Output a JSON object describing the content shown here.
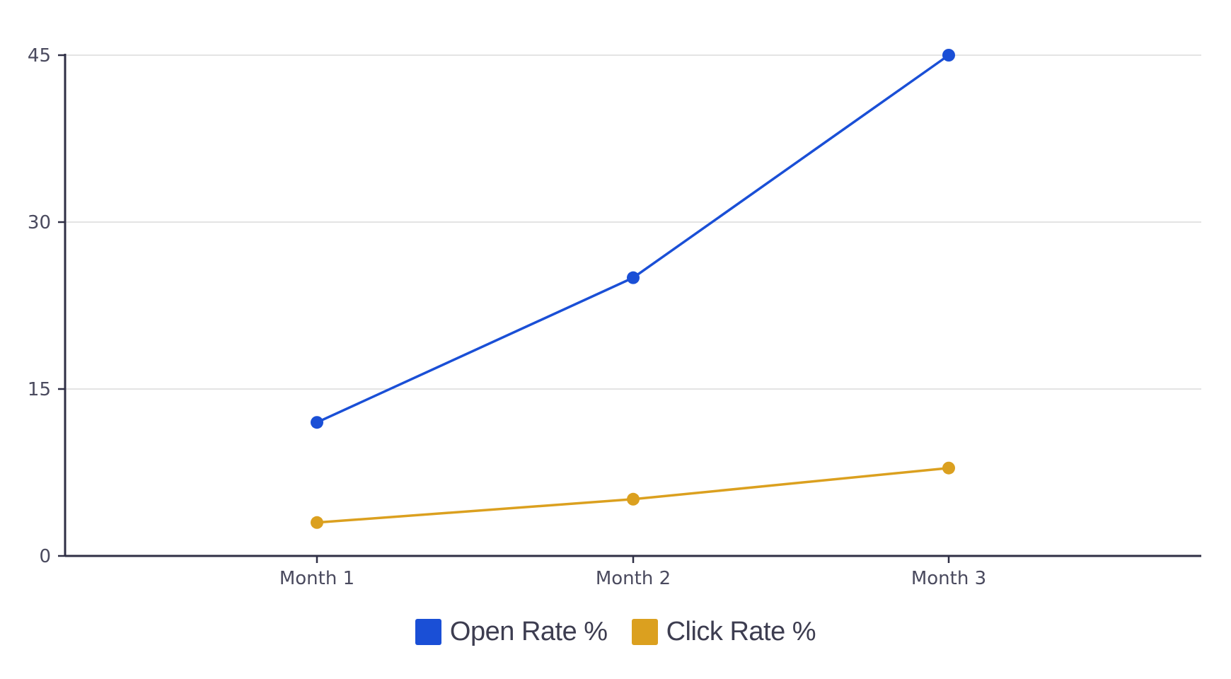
{
  "chart_data": {
    "type": "line",
    "categories": [
      "Month 1",
      "Month 2",
      "Month 3"
    ],
    "series": [
      {
        "name": "Open Rate %",
        "values": [
          12,
          25,
          45
        ],
        "color": "#1a4fd6"
      },
      {
        "name": "Click Rate %",
        "values": [
          3,
          5.1,
          7.9
        ],
        "color": "#dba01f"
      }
    ],
    "ylim": [
      0,
      45
    ],
    "yticks": [
      0,
      15,
      30,
      45
    ],
    "grid": true,
    "legend_position": "bottom-center"
  }
}
